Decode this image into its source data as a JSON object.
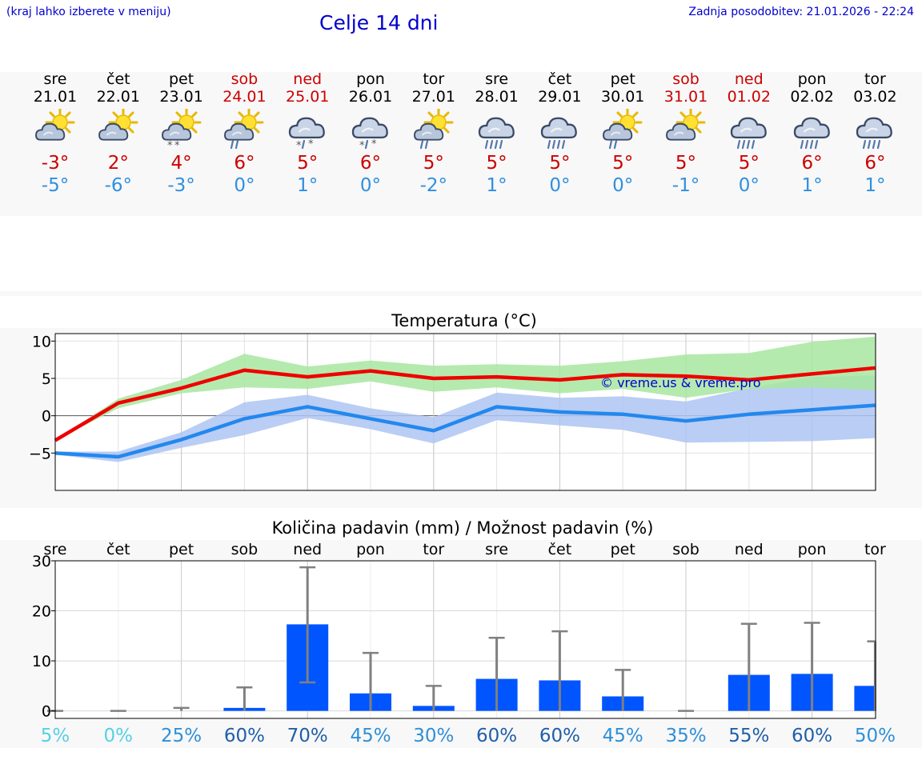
{
  "header": {
    "location_hint": "(kraj lahko izberete v meniju)",
    "title": "Celje 14 dni",
    "updated": "Zadnja posodobitev: 21.01.2026 - 22:24"
  },
  "days": [
    {
      "name": "sre",
      "date": "21.01",
      "max": "-3°",
      "min": "-5°",
      "icon": "sun-cloud",
      "weekend": false
    },
    {
      "name": "čet",
      "date": "22.01",
      "max": "2°",
      "min": "-6°",
      "icon": "sun-cloud",
      "weekend": false
    },
    {
      "name": "pet",
      "date": "23.01",
      "max": "4°",
      "min": "-3°",
      "icon": "sun-cloud-snow",
      "weekend": false
    },
    {
      "name": "sob",
      "date": "24.01",
      "max": "6°",
      "min": "0°",
      "icon": "sun-cloud-rain",
      "weekend": true
    },
    {
      "name": "ned",
      "date": "25.01",
      "max": "5°",
      "min": "1°",
      "icon": "cloud-sleet",
      "weekend": true
    },
    {
      "name": "pon",
      "date": "26.01",
      "max": "6°",
      "min": "0°",
      "icon": "cloud-sleet",
      "weekend": false
    },
    {
      "name": "tor",
      "date": "27.01",
      "max": "5°",
      "min": "-2°",
      "icon": "sun-cloud-rain",
      "weekend": false
    },
    {
      "name": "sre",
      "date": "28.01",
      "max": "5°",
      "min": "1°",
      "icon": "cloud-rain",
      "weekend": false
    },
    {
      "name": "čet",
      "date": "29.01",
      "max": "5°",
      "min": "0°",
      "icon": "cloud-rain",
      "weekend": false
    },
    {
      "name": "pet",
      "date": "30.01",
      "max": "5°",
      "min": "0°",
      "icon": "sun-cloud-rain",
      "weekend": false
    },
    {
      "name": "sob",
      "date": "31.01",
      "max": "5°",
      "min": "-1°",
      "icon": "sun-cloud",
      "weekend": true
    },
    {
      "name": "ned",
      "date": "01.02",
      "max": "5°",
      "min": "0°",
      "icon": "cloud-rain",
      "weekend": true
    },
    {
      "name": "pon",
      "date": "02.02",
      "max": "6°",
      "min": "1°",
      "icon": "cloud-rain",
      "weekend": false
    },
    {
      "name": "tor",
      "date": "03.02",
      "max": "6°",
      "min": "1°",
      "icon": "cloud-rain",
      "weekend": false
    }
  ],
  "colors": {
    "max": "#ee0000",
    "min": "#2288ee",
    "max_band": "#a8e6a0",
    "min_band": "#aec4f2",
    "precip_bar": "#0055ff",
    "error_bar": "#808080"
  },
  "chart_data": [
    {
      "type": "line",
      "title": "Temperatura (°C)",
      "watermark": "© vreme.us & vreme.pro",
      "ylim": [
        -10,
        11
      ],
      "yticks": [
        10,
        5,
        0,
        -5
      ],
      "ytick_labels": [
        "10",
        "5",
        "0",
        "−5"
      ],
      "x": [
        0,
        1,
        2,
        3,
        4,
        5,
        6,
        7,
        8,
        9,
        10,
        11,
        12,
        13
      ],
      "series": [
        {
          "name": "max",
          "values": [
            -3.3,
            1.7,
            3.7,
            6.1,
            5.2,
            6.0,
            5.0,
            5.2,
            4.8,
            5.5,
            5.3,
            4.8,
            5.6,
            6.4
          ]
        },
        {
          "name": "min",
          "values": [
            -5.0,
            -5.5,
            -3.2,
            -0.4,
            1.2,
            -0.4,
            -2.0,
            1.2,
            0.5,
            0.2,
            -0.7,
            0.2,
            0.8,
            1.4
          ]
        }
      ],
      "bands": [
        {
          "name": "max",
          "lower": [
            -3.3,
            1.0,
            3.0,
            3.8,
            3.6,
            4.6,
            3.2,
            3.8,
            3.0,
            3.6,
            2.4,
            3.6,
            3.8,
            3.4
          ],
          "upper": [
            -3.3,
            2.3,
            4.8,
            8.3,
            6.6,
            7.4,
            6.7,
            6.9,
            6.7,
            7.3,
            8.2,
            8.4,
            9.9,
            10.6
          ]
        },
        {
          "name": "min",
          "lower": [
            -5.2,
            -6.2,
            -4.3,
            -2.6,
            -0.3,
            -1.8,
            -3.7,
            -0.6,
            -1.3,
            -1.9,
            -3.6,
            -3.5,
            -3.4,
            -3.0
          ],
          "upper": [
            -4.8,
            -4.8,
            -2.2,
            1.8,
            2.8,
            1.0,
            -0.2,
            3.1,
            2.4,
            2.6,
            1.9,
            3.7,
            5.2,
            5.4
          ]
        }
      ]
    },
    {
      "type": "bar",
      "title": "Količina padavin (mm) / Možnost padavin (%)",
      "categories": [
        "sre",
        "čet",
        "pet",
        "sob",
        "ned",
        "pon",
        "tor",
        "sre",
        "čet",
        "pet",
        "sob",
        "ned",
        "pon",
        "tor"
      ],
      "ylim": [
        -1.5,
        30
      ],
      "yticks": [
        30,
        20,
        10,
        0
      ],
      "values": [
        0.0,
        0.0,
        0.0,
        0.6,
        17.3,
        3.5,
        1.0,
        6.4,
        6.1,
        2.9,
        0.0,
        7.2,
        7.4,
        5.0
      ],
      "error_low": [
        0.0,
        0.0,
        0.0,
        0.0,
        5.7,
        0.0,
        0.0,
        0.0,
        0.0,
        0.0,
        0.0,
        0.0,
        0.0,
        0.0
      ],
      "error_high": [
        0.0,
        0.0,
        0.6,
        4.7,
        28.7,
        11.6,
        5.0,
        14.6,
        15.9,
        8.2,
        0.0,
        17.4,
        17.6,
        13.9
      ],
      "probability": [
        "5%",
        "0%",
        "25%",
        "60%",
        "70%",
        "45%",
        "30%",
        "60%",
        "60%",
        "45%",
        "35%",
        "55%",
        "60%",
        "50%"
      ],
      "probability_values": [
        5,
        0,
        25,
        60,
        70,
        45,
        30,
        60,
        60,
        45,
        35,
        55,
        60,
        50
      ]
    }
  ]
}
